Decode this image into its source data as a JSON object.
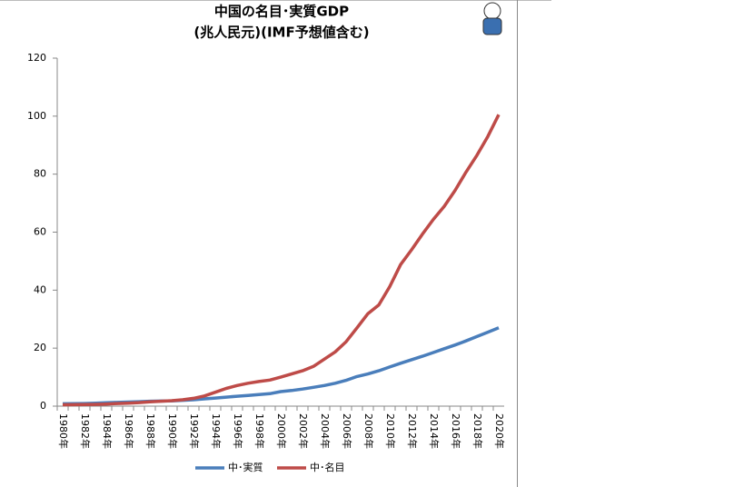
{
  "chart_data": {
    "type": "line",
    "title": "中国の名目･実質GDP",
    "subtitle": "(兆人民元)(IMF予想値含む)",
    "categories": [
      "1980年",
      null,
      "1982年",
      null,
      "1984年",
      null,
      "1986年",
      null,
      "1988年",
      null,
      "1990年",
      null,
      "1992年",
      null,
      "1994年",
      null,
      "1996年",
      null,
      "1998年",
      null,
      "2000年",
      null,
      "2002年",
      null,
      "2004年",
      null,
      "2006年",
      null,
      "2008年",
      null,
      "2010年",
      null,
      "2012年",
      null,
      "2014年",
      null,
      "2016年",
      null,
      "2018年",
      null,
      "2020年"
    ],
    "series": [
      {
        "name": "中･実質",
        "color": "#4a7ebb",
        "values": [
          0.8,
          0.85,
          0.9,
          1.0,
          1.15,
          1.3,
          1.4,
          1.55,
          1.7,
          1.75,
          1.8,
          2.0,
          2.2,
          2.5,
          2.8,
          3.1,
          3.4,
          3.7,
          4.0,
          4.3,
          5.0,
          5.4,
          5.9,
          6.5,
          7.1,
          7.9,
          8.9,
          10.2,
          11.1,
          12.2,
          13.5,
          14.8,
          16.0,
          17.2,
          18.5,
          19.8,
          21.1,
          22.5,
          24.0,
          25.5,
          27.0
        ]
      },
      {
        "name": "中･名目",
        "color": "#be4b48",
        "values": [
          0.46,
          0.49,
          0.53,
          0.6,
          0.72,
          0.9,
          1.03,
          1.21,
          1.5,
          1.7,
          1.87,
          2.2,
          2.7,
          3.5,
          4.8,
          6.1,
          7.1,
          7.9,
          8.5,
          9.0,
          10.0,
          11.1,
          12.2,
          13.7,
          16.2,
          18.7,
          22.2,
          27.0,
          31.9,
          34.9,
          41.2,
          48.8,
          53.9,
          59.3,
          64.4,
          68.9,
          74.4,
          80.7,
          86.5,
          93.0,
          100.5
        ]
      }
    ],
    "ylim": [
      0,
      120
    ],
    "yticks": [
      0,
      20,
      40,
      60,
      80,
      100,
      120
    ],
    "grid": false,
    "legend": "bottom"
  }
}
